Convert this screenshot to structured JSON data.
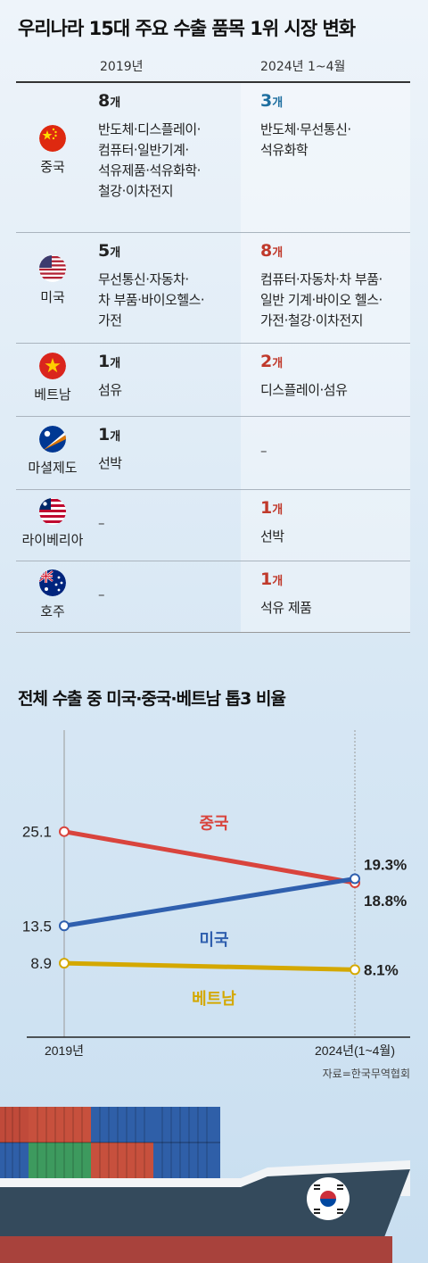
{
  "title": "우리나라 15대 주요 수출 품목 1위 시장 변화",
  "columns": [
    "2019년",
    "2024년 1~4월"
  ],
  "rows": [
    {
      "country": "중국",
      "c2019": "8",
      "i2019": "반도체·디스플레이·\n컴퓨터·일반기계·\n석유제품·석유화학·\n철강·이차전지",
      "c2024": "3",
      "i2024": "반도체·무선통신·\n석유화학",
      "color2024": "#1f6fa0"
    },
    {
      "country": "미국",
      "c2019": "5",
      "i2019": "무선통신·자동차·\n차 부품·바이오헬스·\n가전",
      "c2024": "8",
      "i2024": "컴퓨터·자동차·차 부품·\n일반 기계·바이오 헬스·\n가전·철강·이차전지",
      "color2024": "#c0392b"
    },
    {
      "country": "베트남",
      "c2019": "1",
      "i2019": "섬유",
      "c2024": "2",
      "i2024": "디스플레이·섬유",
      "color2024": "#c0392b"
    },
    {
      "country": "마셜제도",
      "c2019": "1",
      "i2019": "선박",
      "c2024": "",
      "i2024": "–",
      "color2024": "#c0392b"
    },
    {
      "country": "라이베리아",
      "c2019": "",
      "i2019": "–",
      "c2024": "1",
      "i2024": "선박",
      "color2024": "#c0392b"
    },
    {
      "country": "호주",
      "c2019": "",
      "i2019": "–",
      "c2024": "1",
      "i2024": "석유 제품",
      "color2024": "#c0392b"
    }
  ],
  "unit": "개",
  "chart_title": "전체 수출 중 미국·중국·베트남 톱3 비율",
  "chart_data": {
    "type": "line",
    "x": [
      "2019년",
      "2024년(1~4월)"
    ],
    "series": [
      {
        "name": "중국",
        "values": [
          25.1,
          18.8
        ],
        "color": "#d9443d",
        "labels": [
          "25.1",
          "18.8%"
        ]
      },
      {
        "name": "미국",
        "values": [
          13.5,
          19.3
        ],
        "color": "#2f5fae",
        "labels": [
          "13.5",
          "19.3%"
        ]
      },
      {
        "name": "베트남",
        "values": [
          8.9,
          8.1
        ],
        "color": "#d4a800",
        "labels": [
          "8.9",
          "8.1%"
        ]
      }
    ]
  },
  "source": "자료=한국무역협회"
}
